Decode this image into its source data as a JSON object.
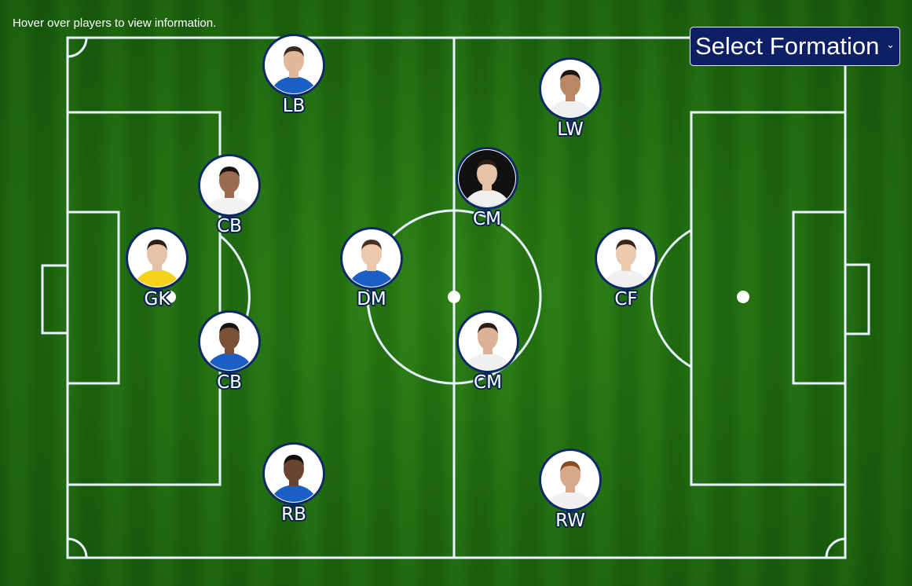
{
  "hint": "Hover over players to view information.",
  "formation_select": {
    "label": "Select Formation",
    "icon": "chevron-down-icon"
  },
  "colors": {
    "pin_border": "#0e2a66",
    "select_bg": "#0e1f66",
    "pitch_dark": "#1f6a0f",
    "pitch_light": "#2a7c15",
    "line": "#e8f4ff"
  },
  "players": [
    {
      "id": "lb",
      "position": "LB",
      "dark_bg": false,
      "shirt": "#1a5fc4",
      "skin": "#e2b89a",
      "hair": "#3a2a20"
    },
    {
      "id": "lw",
      "position": "LW",
      "dark_bg": false,
      "shirt": "#f0f0f0",
      "skin": "#b88866",
      "hair": "#1c1410"
    },
    {
      "id": "lcb",
      "position": "CB",
      "dark_bg": false,
      "shirt": "#f2f2f2",
      "skin": "#9a6b4e",
      "hair": "#1a1410"
    },
    {
      "id": "lcm",
      "position": "CM",
      "dark_bg": true,
      "shirt": "#f0f0f0",
      "skin": "#e6c2a6",
      "hair": "#2b1e16"
    },
    {
      "id": "gk",
      "position": "GK",
      "dark_bg": false,
      "shirt": "#f4d21c",
      "skin": "#e6c2a6",
      "hair": "#2b1e16"
    },
    {
      "id": "dm",
      "position": "DM",
      "dark_bg": false,
      "shirt": "#1a5fc4",
      "skin": "#ecc8ae",
      "hair": "#4a3020"
    },
    {
      "id": "cf",
      "position": "CF",
      "dark_bg": false,
      "shirt": "#f0f0f0",
      "skin": "#eccab0",
      "hair": "#3a2418"
    },
    {
      "id": "rcb",
      "position": "CB",
      "dark_bg": false,
      "shirt": "#1a5fc4",
      "skin": "#7a5038",
      "hair": "#1a1410"
    },
    {
      "id": "rcm",
      "position": "CM",
      "dark_bg": false,
      "shirt": "#f0f0f0",
      "skin": "#dcb296",
      "hair": "#2b1e16"
    },
    {
      "id": "rb",
      "position": "RB",
      "dark_bg": false,
      "shirt": "#1a5fc4",
      "skin": "#6a4430",
      "hair": "#120c0a"
    },
    {
      "id": "rw",
      "position": "RW",
      "dark_bg": false,
      "shirt": "#f0f0f0",
      "skin": "#d8a88a",
      "hair": "#8a4a24"
    }
  ]
}
